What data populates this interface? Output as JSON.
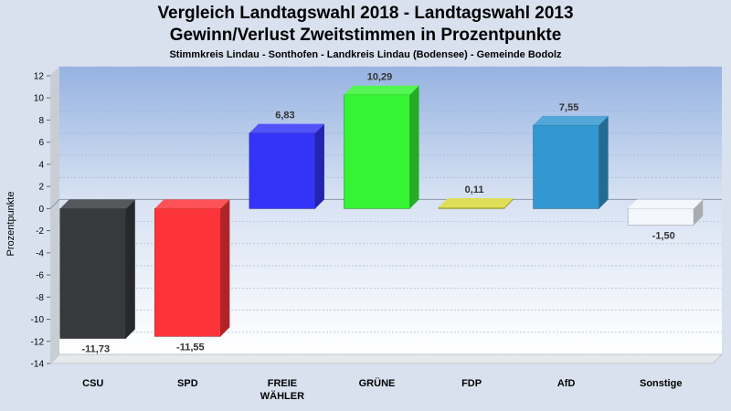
{
  "chart_data": {
    "type": "bar",
    "title": "Vergleich Landtagswahl 2018 - Landtagswahl 2013",
    "subtitle_line": "Gewinn/Verlust Zweitstimmen in Prozentpunkte",
    "subtitle": "Stimmkreis Lindau - Sonthofen - Landkreis Lindau (Bodensee) - Gemeinde Bodolz",
    "ylabel": "Prozentpunkte",
    "ylim": [
      -14,
      12
    ],
    "yticks": [
      12,
      10,
      8,
      6,
      4,
      2,
      0,
      -2,
      -4,
      -6,
      -8,
      -10,
      -12,
      -14
    ],
    "categories": [
      [
        "CSU"
      ],
      [
        "SPD"
      ],
      [
        "FREIE",
        "WÄHLER"
      ],
      [
        "GRÜNE"
      ],
      [
        "FDP"
      ],
      [
        "AfD"
      ],
      [
        "Sonstige"
      ]
    ],
    "values": [
      -11.73,
      -11.55,
      6.83,
      10.29,
      0.11,
      7.55,
      -1.5
    ],
    "labels": [
      "-11,73",
      "-11,55",
      "6,83",
      "10,29",
      "0,11",
      "7,55",
      "-1,50"
    ],
    "colors": [
      "#37393d",
      "#fc3439",
      "#3434f8",
      "#35f434",
      "#d8d83c",
      "#3398d1",
      "#f3f6fd"
    ],
    "grid": true,
    "legend": "none"
  }
}
